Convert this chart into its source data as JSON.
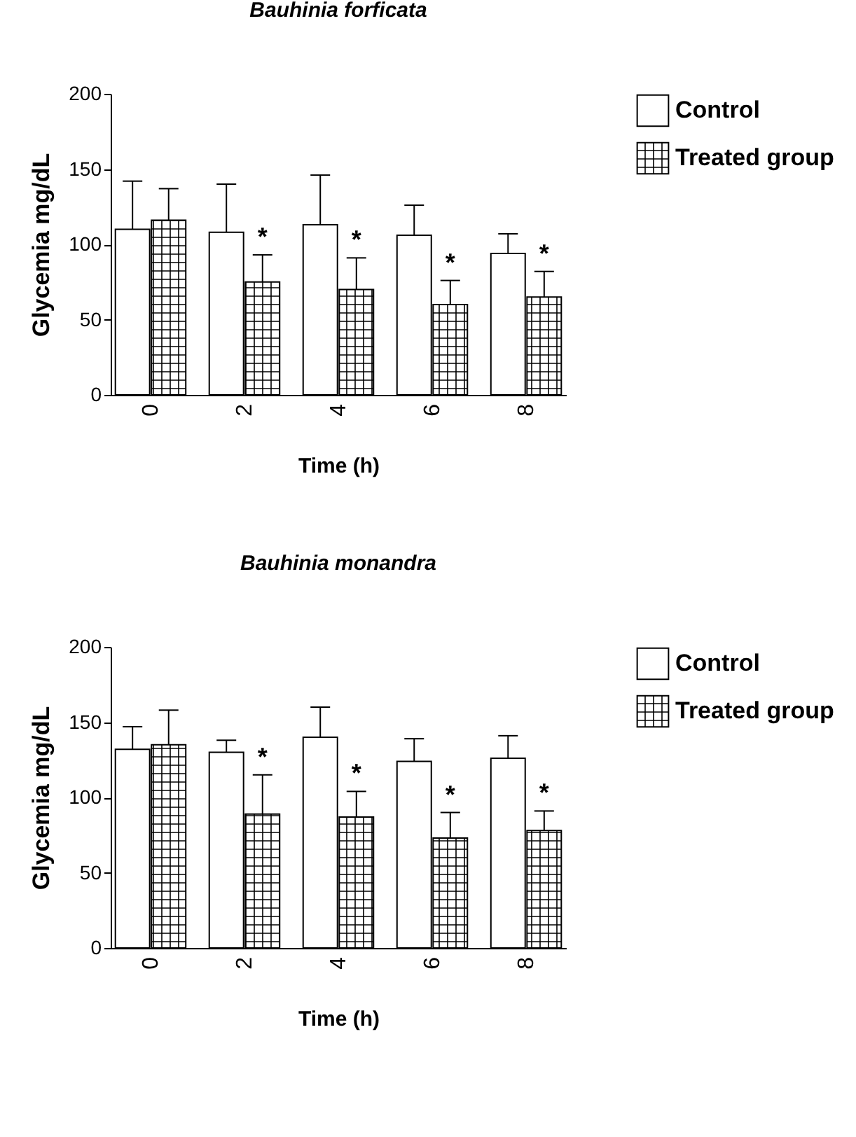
{
  "chart_data": [
    {
      "type": "bar",
      "title": "Bauhinia forficata",
      "xlabel": "Time (h)",
      "ylabel": "Glycemia mg/dL",
      "categories": [
        "0",
        "2",
        "4",
        "6",
        "8"
      ],
      "ylim": [
        0,
        200
      ],
      "yticks": [
        0,
        50,
        100,
        150,
        200
      ],
      "legend": "top right",
      "series": [
        {
          "name": "Control",
          "color": "#ffffff",
          "values": [
            110,
            108,
            113,
            106,
            94
          ],
          "errors": [
            [
              110,
              142
            ],
            [
              108,
              140
            ],
            [
              113,
              146
            ],
            [
              106,
              126
            ],
            [
              94,
              107
            ]
          ]
        },
        {
          "name": "Treated group",
          "color": "#000000",
          "values": [
            116,
            75,
            70,
            60,
            65
          ],
          "errors": [
            [
              116,
              137
            ],
            [
              75,
              93
            ],
            [
              70,
              91
            ],
            [
              60,
              76
            ],
            [
              65,
              82
            ]
          ]
        }
      ],
      "annotations": [
        {
          "text": "*",
          "x": "2",
          "y": 93
        },
        {
          "text": "*",
          "x": "4",
          "y": 91
        },
        {
          "text": "*",
          "x": "6",
          "y": 76
        },
        {
          "text": "*",
          "x": "8",
          "y": 82
        }
      ]
    },
    {
      "type": "bar",
      "title": "Bauhinia monandra",
      "xlabel": "Time (h)",
      "ylabel": "Glycemia mg/dL",
      "categories": [
        "0",
        "2",
        "4",
        "6",
        "8"
      ],
      "ylim": [
        0,
        200
      ],
      "yticks": [
        0,
        50,
        100,
        150,
        200
      ],
      "legend": "top right",
      "series": [
        {
          "name": "Control",
          "color": "#ffffff",
          "values": [
            132,
            130,
            140,
            124,
            126
          ],
          "errors": [
            [
              132,
              147
            ],
            [
              130,
              138
            ],
            [
              140,
              160
            ],
            [
              124,
              139
            ],
            [
              126,
              141
            ]
          ]
        },
        {
          "name": "Treated group",
          "color": "#000000",
          "values": [
            135,
            89,
            87,
            73,
            78
          ],
          "errors": [
            [
              135,
              158
            ],
            [
              89,
              115
            ],
            [
              87,
              104
            ],
            [
              73,
              90
            ],
            [
              78,
              91
            ]
          ]
        }
      ],
      "annotations": [
        {
          "text": "*",
          "x": "2",
          "y": 115
        },
        {
          "text": "*",
          "x": "4",
          "y": 104
        },
        {
          "text": "*",
          "x": "6",
          "y": 90
        },
        {
          "text": "*",
          "x": "8",
          "y": 91
        }
      ]
    }
  ]
}
